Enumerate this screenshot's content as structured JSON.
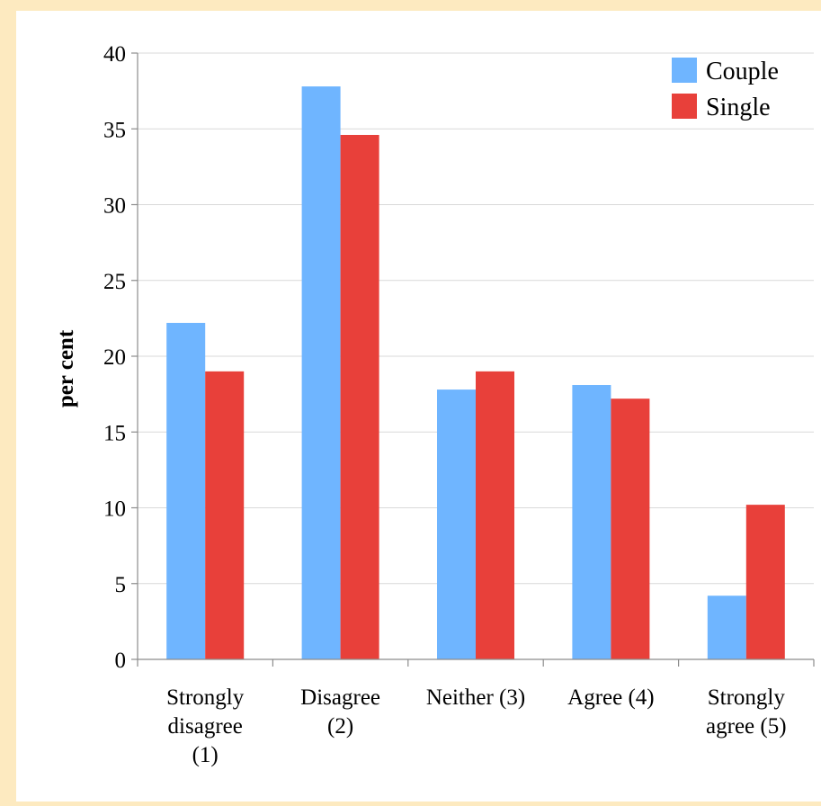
{
  "chart_data": {
    "type": "bar",
    "title": "",
    "xlabel": "",
    "ylabel": "per cent",
    "ylim": [
      0,
      40
    ],
    "yticks": [
      0,
      5,
      10,
      15,
      20,
      25,
      30,
      35,
      40
    ],
    "grid": true,
    "legend_position": "top-right",
    "categories": [
      [
        "Strongly",
        "disagree",
        "(1)"
      ],
      [
        "Disagree",
        "(2)"
      ],
      [
        "Neither (3)"
      ],
      [
        "Agree (4)"
      ],
      [
        "Strongly",
        "agree (5)"
      ]
    ],
    "series": [
      {
        "name": "Couple",
        "color": "#6fb5ff",
        "values": [
          22.2,
          37.8,
          17.8,
          18.1,
          4.2
        ]
      },
      {
        "name": "Single",
        "color": "#e8403a",
        "values": [
          19.0,
          34.6,
          19.0,
          17.2,
          10.2
        ]
      }
    ]
  }
}
